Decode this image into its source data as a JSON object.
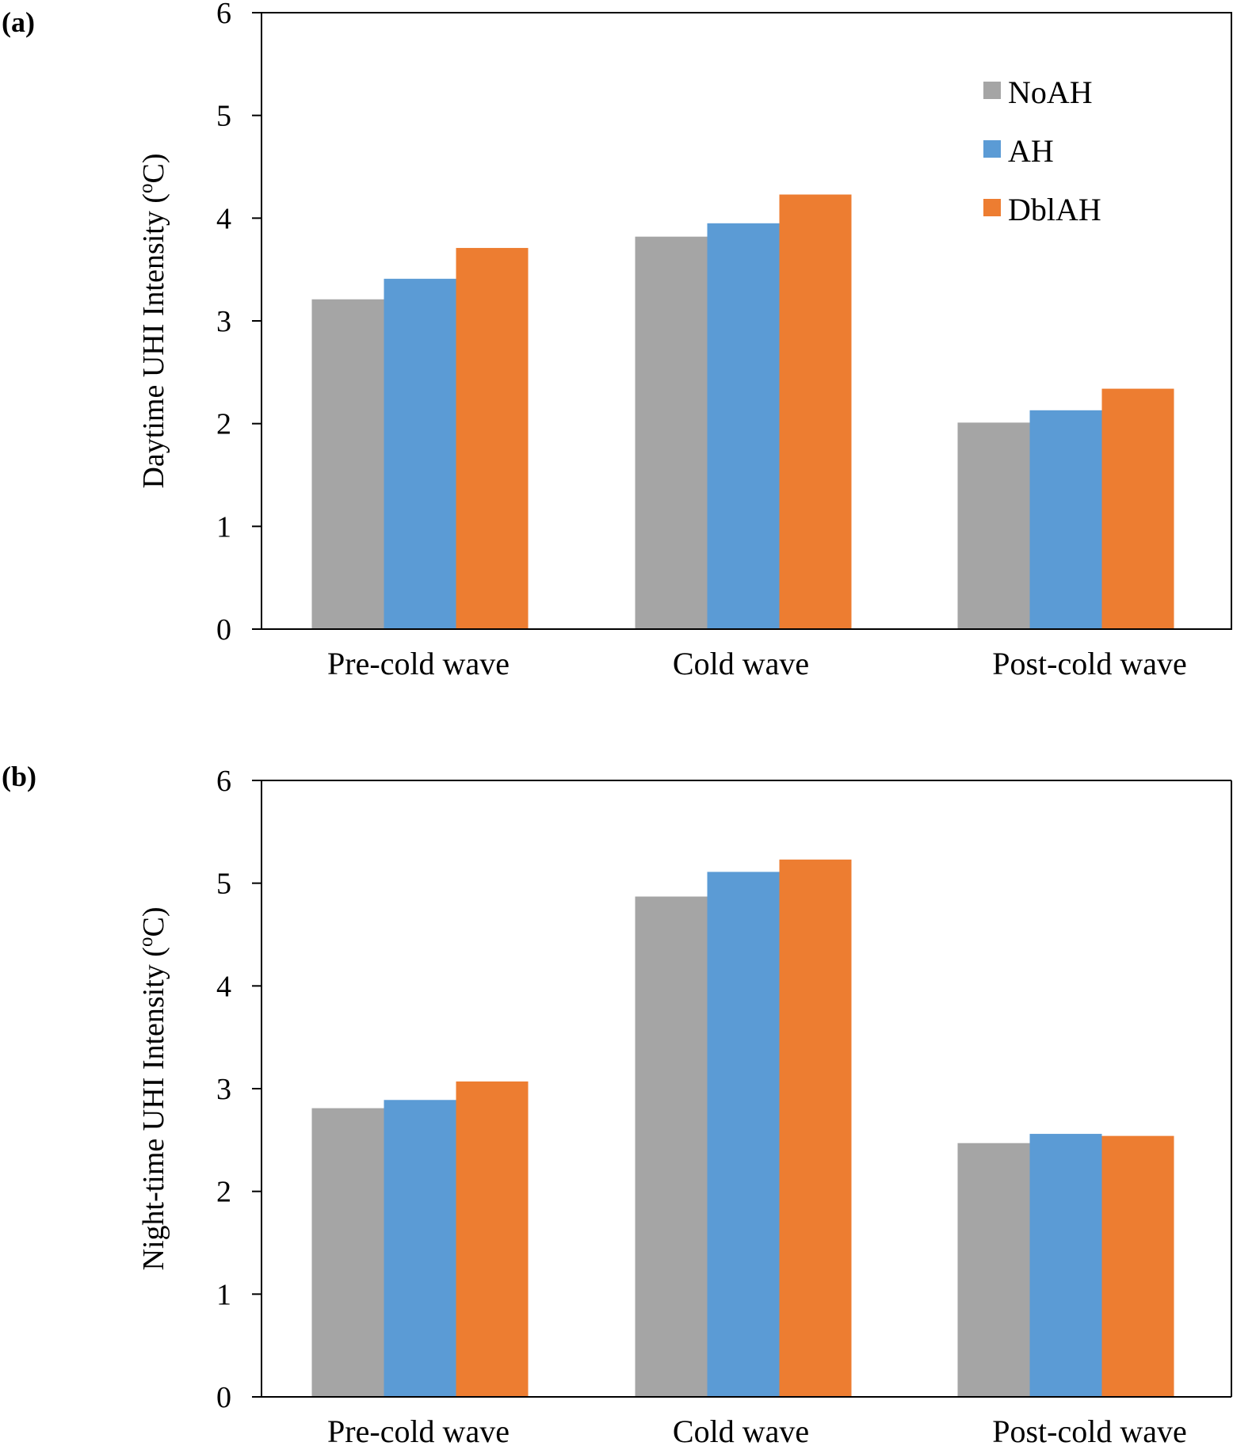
{
  "chart_data": [
    {
      "panel_label": "(a)",
      "type": "bar",
      "categories": [
        "Pre-cold wave",
        "Cold wave",
        "Post-cold wave"
      ],
      "series": [
        {
          "name": "NoAH",
          "values": [
            3.21,
            3.82,
            2.01
          ]
        },
        {
          "name": "AH",
          "values": [
            3.41,
            3.95,
            2.13
          ]
        },
        {
          "name": "DblAH",
          "values": [
            3.71,
            4.23,
            2.34
          ]
        }
      ],
      "title": "",
      "xlabel": "",
      "ylabel_main": "Daytime UHI Intensity (",
      "ylabel_sup": "o",
      "ylabel_end": "C)",
      "ylim": [
        0,
        6
      ],
      "yticks": [
        "0",
        "1",
        "2",
        "3",
        "4",
        "5",
        "6"
      ],
      "grid": false,
      "legend": "top-right"
    },
    {
      "panel_label": "(b)",
      "type": "bar",
      "categories": [
        "Pre-cold wave",
        "Cold wave",
        "Post-cold wave"
      ],
      "series": [
        {
          "name": "NoAH",
          "values": [
            2.81,
            4.87,
            2.47
          ]
        },
        {
          "name": "AH",
          "values": [
            2.89,
            5.11,
            2.56
          ]
        },
        {
          "name": "DblAH",
          "values": [
            3.07,
            5.23,
            2.54
          ]
        }
      ],
      "title": "",
      "xlabel": "",
      "ylabel_main": "Night-time UHI Intensity (",
      "ylabel_sup": "o",
      "ylabel_end": "C)",
      "ylim": [
        0,
        6
      ],
      "yticks": [
        "0",
        "1",
        "2",
        "3",
        "4",
        "5",
        "6"
      ],
      "grid": false,
      "legend": "none"
    }
  ],
  "colors": {
    "NoAH": "#a5a5a5",
    "AH": "#5b9bd5",
    "DblAH": "#ed7d31",
    "axis": "#000000"
  }
}
